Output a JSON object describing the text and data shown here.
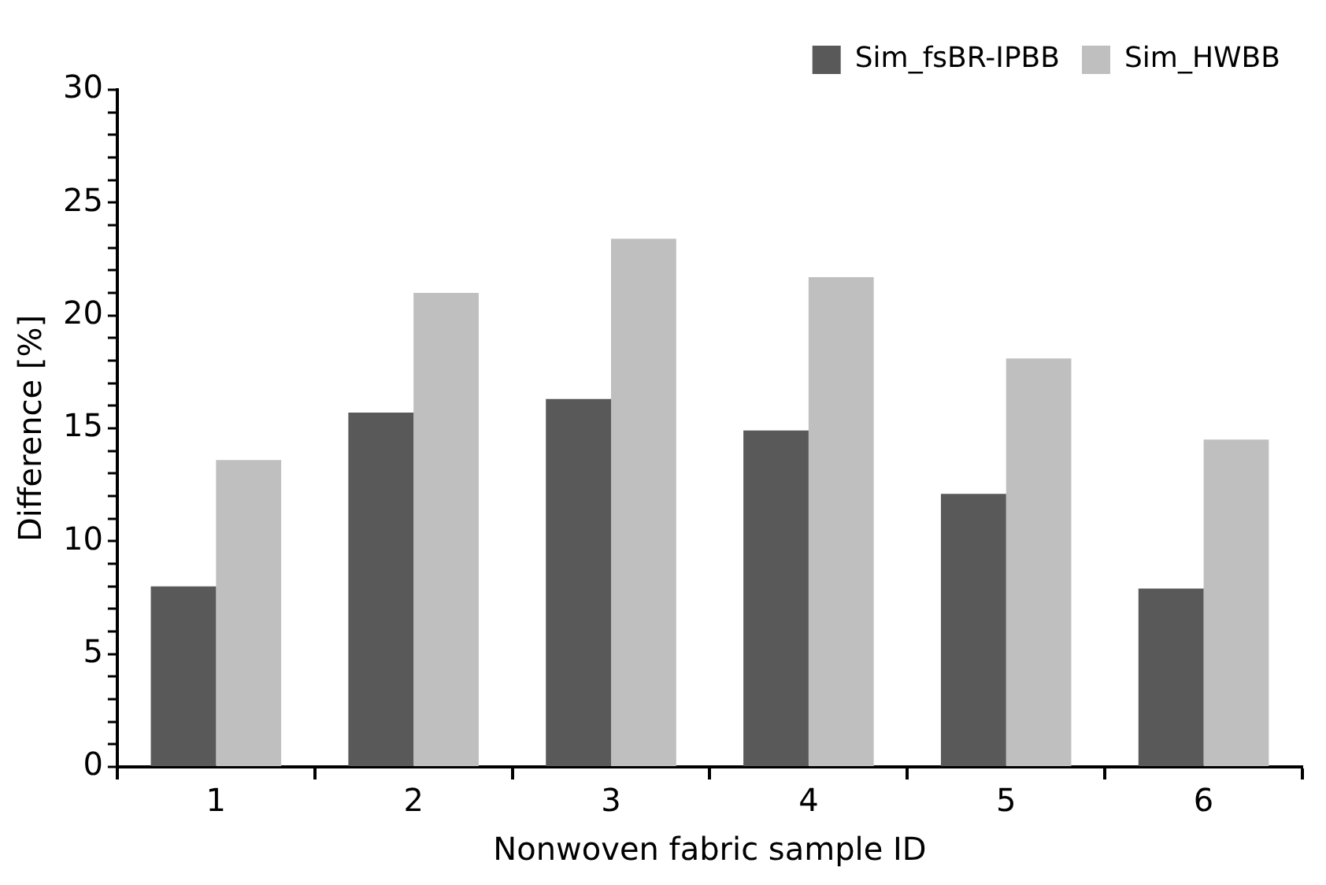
{
  "chart_data": {
    "type": "bar",
    "xlabel": "Nonwoven fabric sample ID",
    "ylabel": "Difference [%]",
    "categories": [
      "1",
      "2",
      "3",
      "4",
      "5",
      "6"
    ],
    "series": [
      {
        "name": "Sim_fsBR-IPBB",
        "color": "#595959",
        "values": [
          8.0,
          15.7,
          16.3,
          14.9,
          12.1,
          7.9
        ]
      },
      {
        "name": "Sim_HWBB",
        "color": "#bfbfbf",
        "values": [
          13.6,
          21.0,
          23.4,
          21.7,
          18.1,
          14.5
        ]
      }
    ],
    "ylim": [
      0,
      30
    ],
    "yticks": [
      0,
      {
        "value": 1,
        "label": null
      },
      {
        "value": 2,
        "label": null
      },
      {
        "value": 3,
        "label": null
      },
      {
        "value": 4,
        "label": null
      },
      5,
      {
        "value": 6,
        "label": null
      },
      {
        "value": 7,
        "label": null
      },
      {
        "value": 8,
        "label": null
      },
      {
        "value": 9,
        "label": null
      },
      10,
      {
        "value": 11,
        "label": null
      },
      {
        "value": 12,
        "label": null
      },
      {
        "value": 13,
        "label": null
      },
      {
        "value": 14,
        "label": null
      },
      15,
      {
        "value": 16,
        "label": null
      },
      {
        "value": 17,
        "label": null
      },
      {
        "value": 18,
        "label": null
      },
      {
        "value": 19,
        "label": null
      },
      20,
      {
        "value": 21,
        "label": null
      },
      {
        "value": 22,
        "label": null
      },
      {
        "value": 23,
        "label": null
      },
      {
        "value": 24,
        "label": null
      },
      25,
      {
        "value": 26,
        "label": null
      },
      {
        "value": 27,
        "label": null
      },
      {
        "value": 28,
        "label": null
      },
      {
        "value": 29,
        "label": null
      },
      30
    ],
    "grid": false,
    "legend": "top right"
  }
}
